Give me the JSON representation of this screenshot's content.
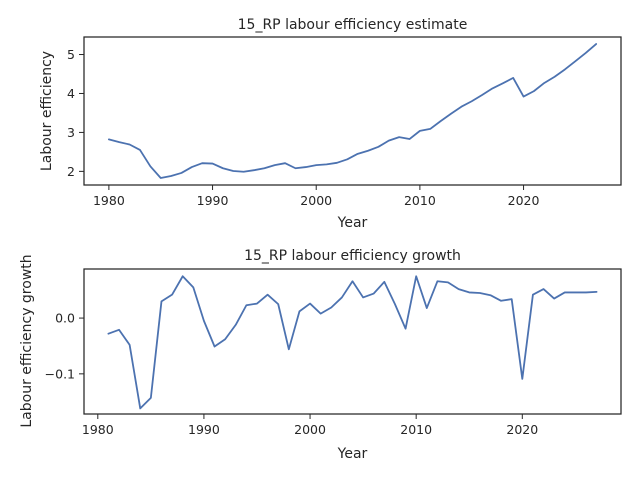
{
  "style": {
    "line_color": "#4c72b0",
    "axis_color": "#262626",
    "background": "#ffffff"
  },
  "chart_data": [
    {
      "type": "line",
      "title": "15_RP labour efficiency estimate",
      "xlabel": "Year",
      "ylabel": "Labour efficiency",
      "xlim": [
        1977.6,
        2029.4
      ],
      "ylim": [
        1.65,
        5.45
      ],
      "xticks": [
        1980,
        1990,
        2000,
        2010,
        2020
      ],
      "yticks": [
        2,
        3,
        4,
        5
      ],
      "grid": false,
      "legend": "none",
      "x": [
        1980,
        1981,
        1982,
        1983,
        1984,
        1985,
        1986,
        1987,
        1988,
        1989,
        1990,
        1991,
        1992,
        1993,
        1994,
        1995,
        1996,
        1997,
        1998,
        1999,
        2000,
        2001,
        2002,
        2003,
        2004,
        2005,
        2006,
        2007,
        2008,
        2009,
        2010,
        2011,
        2012,
        2013,
        2014,
        2015,
        2016,
        2017,
        2018,
        2019,
        2020,
        2021,
        2022,
        2023,
        2024,
        2025,
        2026,
        2027
      ],
      "values": [
        2.82,
        2.75,
        2.69,
        2.55,
        2.13,
        1.83,
        1.88,
        1.96,
        2.11,
        2.21,
        2.2,
        2.08,
        2.01,
        1.99,
        2.03,
        2.08,
        2.16,
        2.21,
        2.08,
        2.11,
        2.16,
        2.18,
        2.22,
        2.31,
        2.45,
        2.53,
        2.63,
        2.79,
        2.88,
        2.83,
        3.04,
        3.09,
        3.29,
        3.48,
        3.66,
        3.8,
        3.96,
        4.13,
        4.26,
        4.4,
        3.92,
        4.06,
        4.27,
        4.43,
        4.62,
        4.83,
        5.04,
        5.27
      ]
    },
    {
      "type": "line",
      "title": "15_RP labour efficiency growth",
      "xlabel": "Year",
      "ylabel": "Labour efficiency growth",
      "xlim": [
        1978.7,
        2029.3
      ],
      "ylim": [
        -0.172,
        0.088
      ],
      "xticks": [
        1980,
        1990,
        2000,
        2010,
        2020
      ],
      "yticks": [
        -0.1,
        0.0
      ],
      "yticklabels": [
        "−0.1",
        "0.0"
      ],
      "grid": false,
      "legend": "none",
      "x": [
        1981,
        1982,
        1983,
        1984,
        1985,
        1986,
        1987,
        1988,
        1989,
        1990,
        1991,
        1992,
        1993,
        1994,
        1995,
        1996,
        1997,
        1998,
        1999,
        2000,
        2001,
        2002,
        2003,
        2004,
        2005,
        2006,
        2007,
        2008,
        2009,
        2010,
        2011,
        2012,
        2013,
        2014,
        2015,
        2016,
        2017,
        2018,
        2019,
        2020,
        2021,
        2022,
        2023,
        2024,
        2025,
        2026,
        2027
      ],
      "values": [
        -0.028,
        -0.021,
        -0.048,
        -0.162,
        -0.143,
        0.03,
        0.042,
        0.075,
        0.055,
        -0.005,
        -0.051,
        -0.038,
        -0.012,
        0.023,
        0.026,
        0.042,
        0.025,
        -0.056,
        0.012,
        0.026,
        0.008,
        0.019,
        0.037,
        0.066,
        0.037,
        0.044,
        0.065,
        0.025,
        -0.019,
        0.075,
        0.018,
        0.066,
        0.064,
        0.052,
        0.046,
        0.045,
        0.041,
        0.031,
        0.034,
        -0.109,
        0.042,
        0.052,
        0.035,
        0.046,
        0.046,
        0.046,
        0.047
      ]
    }
  ]
}
